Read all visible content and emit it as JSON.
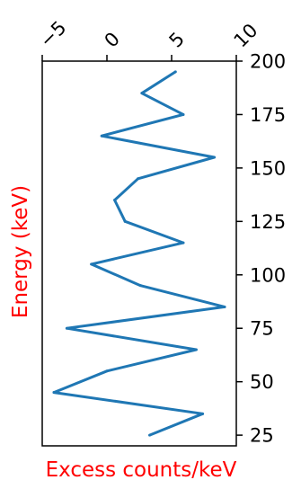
{
  "chart_data": {
    "type": "line",
    "xlabel": "Excess counts/keV",
    "ylabel": "Energy (keV)",
    "xlim": [
      -5,
      10
    ],
    "ylim": [
      20,
      200
    ],
    "x_ticks": [
      -5,
      0,
      5,
      10
    ],
    "y_ticks": [
      25,
      50,
      75,
      100,
      125,
      150,
      175,
      200
    ],
    "grid": false,
    "legend": "none",
    "series": [
      {
        "x": [
          3.3,
          7.4,
          -4.1,
          0.0,
          6.9,
          -3.1,
          9.1,
          2.6,
          -1.2,
          5.9,
          1.4,
          0.6,
          2.4,
          8.3,
          -0.4,
          5.9,
          2.7,
          5.3
        ],
        "y": [
          25,
          35,
          45,
          55,
          65,
          75,
          85,
          95,
          105,
          115,
          125,
          135,
          145,
          155,
          165,
          175,
          185,
          195
        ]
      }
    ],
    "colors": {
      "line": "#1f77b4",
      "xlabel": "#ff0000",
      "ylabel": "#ff0000",
      "axes": "#000000"
    }
  }
}
